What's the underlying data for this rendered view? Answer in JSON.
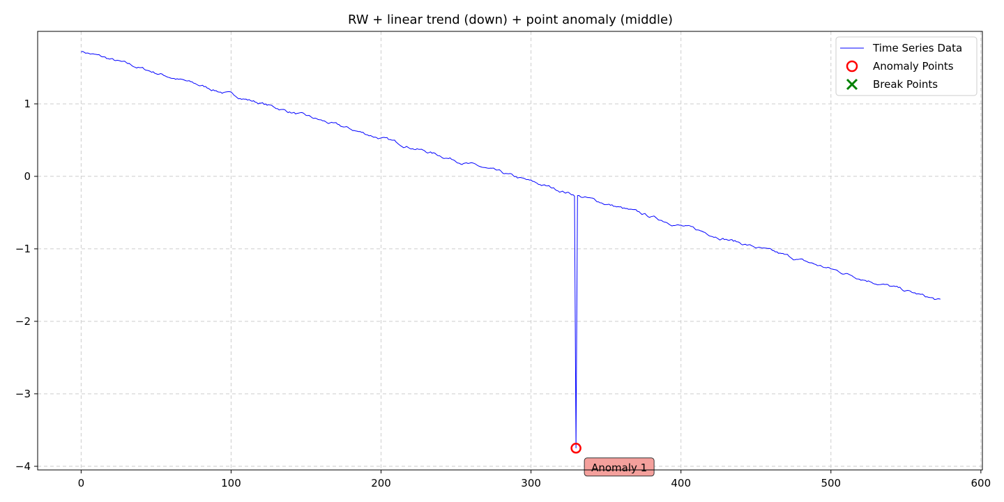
{
  "chart_data": {
    "type": "line",
    "title": "RW + linear trend (down) + point anomaly (middle)",
    "xlabel": "",
    "ylabel": "",
    "xlim": [
      -29,
      601
    ],
    "ylim": [
      -4.05,
      2.0
    ],
    "xticks": [
      0,
      100,
      200,
      300,
      400,
      500,
      600
    ],
    "yticks": [
      -4,
      -3,
      -2,
      -1,
      0,
      1
    ],
    "grid": true,
    "legend_position": "top-right",
    "colors": {
      "series": "#0000ff",
      "anomaly": "#ff0000",
      "break": "#008000",
      "annotation_fill": "#f4a09c"
    },
    "series": [
      {
        "name": "Time Series Data",
        "x_start": 0,
        "x_end": 573,
        "y_start": 1.73,
        "y_end": -1.72,
        "anomaly": {
          "x": 330,
          "y": -3.75
        }
      }
    ],
    "anomaly_points": [
      {
        "x": 330,
        "y": -3.75
      }
    ],
    "break_points": [],
    "legend": [
      {
        "label": "Time Series Data",
        "marker": "line"
      },
      {
        "label": "Anomaly Points",
        "marker": "circle"
      },
      {
        "label": "Break Points",
        "marker": "x"
      }
    ],
    "annotations": [
      {
        "text": "Anomaly 1",
        "x": 330,
        "y": -3.75
      }
    ]
  }
}
